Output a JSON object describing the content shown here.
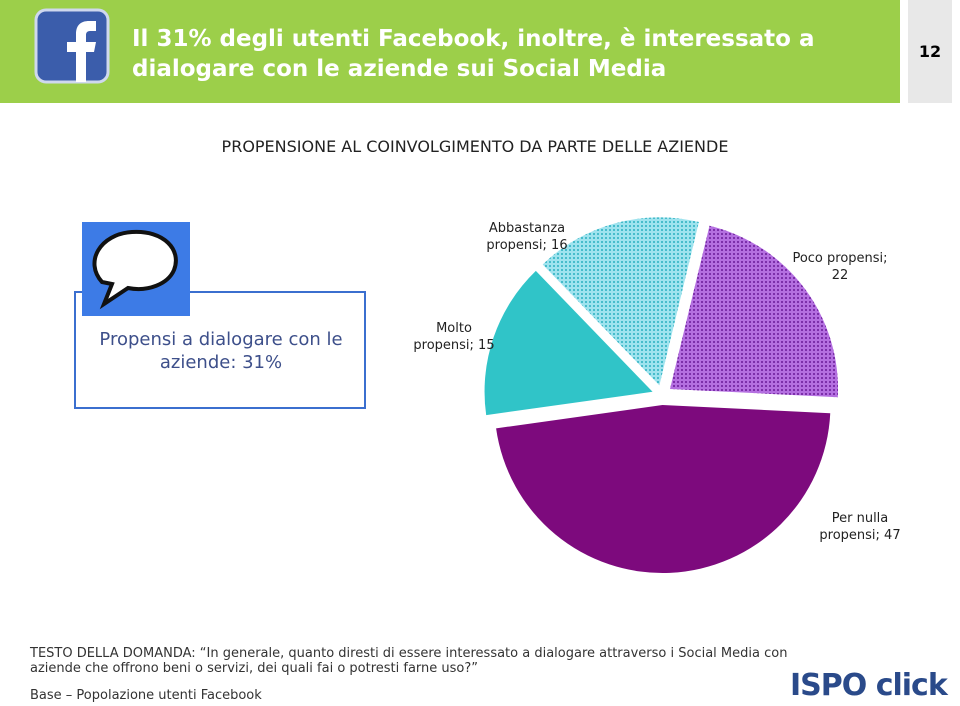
{
  "header": {
    "title": "Il 31% degli utenti Facebook, inoltre, è interessato a dialogare con le aziende sui Social Media",
    "page_number": "12"
  },
  "chart_data": {
    "type": "pie",
    "title": "PROPENSIONE AL COINVOLGIMENTO DA PARTE DELLE AZIENDE",
    "categories": [
      "Molto propensi",
      "Abbastanza propensi",
      "Poco propensi",
      "Per nulla propensi"
    ],
    "values": [
      15,
      16,
      22,
      47
    ],
    "value_labels": [
      "Molto propensi; 15",
      "Abbastanza propensi; 16",
      "Poco propensi; 22",
      "Per nulla propensi; 47"
    ],
    "colors": [
      "#30c4c8",
      "#9fe3ee",
      "#b46fe0",
      "#7d0a7d"
    ]
  },
  "callout": {
    "text": "Propensi a dialogare con le aziende: 31%"
  },
  "footer": {
    "question": "TESTO DELLA DOMANDA: “In generale, quanto diresti di essere interessato a dialogare attraverso i Social Media con aziende che offrono beni o servizi, dei quali fai o potresti farne uso?”",
    "base": "Base – Popolazione utenti Facebook",
    "logo": "ISPO click"
  }
}
